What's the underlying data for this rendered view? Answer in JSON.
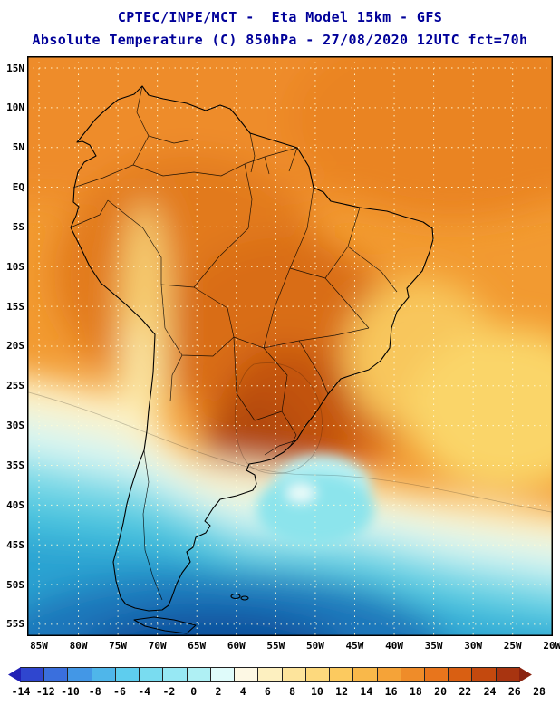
{
  "title": {
    "line1": "CPTEC/INPE/MCT -  Eta Model 15km - GFS",
    "line2": "Absolute Temperature (C) 850hPa - 27/08/2020 12UTC fct=70h"
  },
  "map": {
    "region": "South America",
    "lat_ticks": [
      "15N",
      "10N",
      "5N",
      "EQ",
      "5S",
      "10S",
      "15S",
      "20S",
      "25S",
      "30S",
      "35S",
      "40S",
      "45S",
      "50S",
      "55S"
    ],
    "lon_ticks": [
      "85W",
      "80W",
      "75W",
      "70W",
      "65W",
      "60W",
      "55W",
      "50W",
      "45W",
      "40W",
      "35W",
      "30W",
      "25W",
      "20W"
    ]
  },
  "colorbar": {
    "unit": "C",
    "labels": [
      "-14",
      "-12",
      "-10",
      "-8",
      "-6",
      "-4",
      "-2",
      "0",
      "2",
      "4",
      "6",
      "8",
      "10",
      "12",
      "14",
      "16",
      "18",
      "20",
      "22",
      "24",
      "26",
      "28"
    ],
    "colors": [
      "#2121b5",
      "#2f46cf",
      "#3a6fdd",
      "#4397e6",
      "#4fb6ea",
      "#5ecdee",
      "#79dcf0",
      "#97e8f4",
      "#aff0f4",
      "#dffbfa",
      "#fdf8e4",
      "#fdf0c0",
      "#fde49c",
      "#fdd97d",
      "#fcca5f",
      "#f9b84a",
      "#f5a338",
      "#ef8c29",
      "#e8751c",
      "#d95f12",
      "#c4490e",
      "#a83410",
      "#8a2310"
    ]
  },
  "chart_data": {
    "type": "heatmap",
    "title": "Absolute Temperature (C) 850hPa",
    "source": "CPTEC/INPE/MCT",
    "model": "Eta Model 15km - GFS",
    "valid": "27/08/2020 12UTC fct=70h",
    "x_ticks": [
      "85W",
      "80W",
      "75W",
      "70W",
      "65W",
      "60W",
      "55W",
      "50W",
      "45W",
      "40W",
      "35W",
      "30W",
      "25W",
      "20W"
    ],
    "y_ticks": [
      "15N",
      "10N",
      "5N",
      "EQ",
      "5S",
      "10S",
      "15S",
      "20S",
      "25S",
      "30S",
      "35S",
      "40S",
      "45S",
      "50S",
      "55S"
    ],
    "colorbar_values": [
      -14,
      -12,
      -10,
      -8,
      -6,
      -4,
      -2,
      0,
      2,
      4,
      6,
      8,
      10,
      12,
      14,
      16,
      18,
      20,
      22,
      24,
      26,
      28
    ],
    "colorbar_unit": "C",
    "legend_position": "bottom"
  }
}
